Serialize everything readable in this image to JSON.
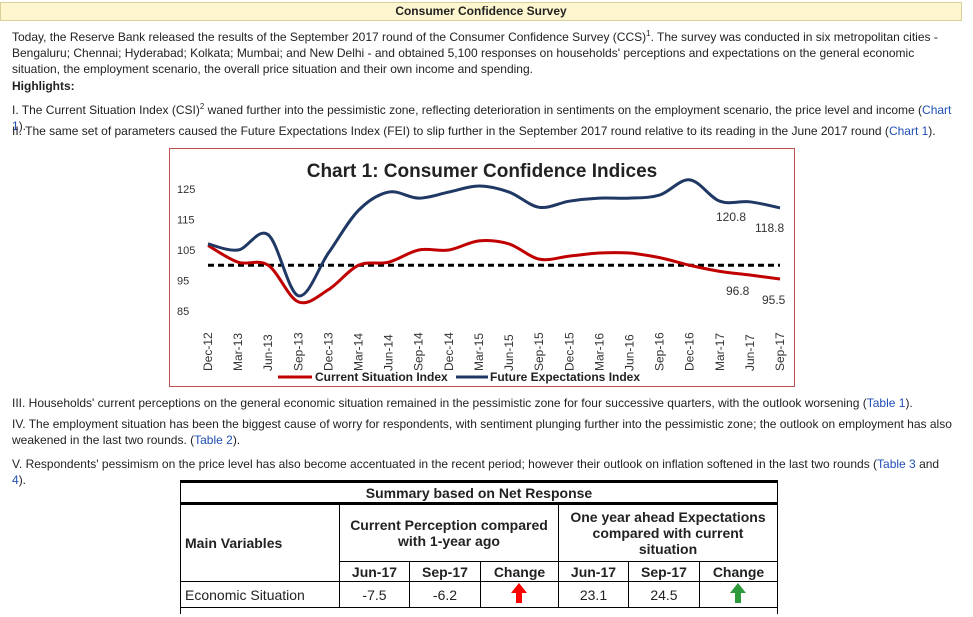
{
  "page": {
    "title": "Consumer Confidence Survey",
    "intro": "Today, the Reserve Bank released the results of the September 2017 round of the Consumer Confidence Survey (CCS)",
    "intro_sup": "1",
    "intro_rest": ". The survey was conducted in six metropolitan cities - Bengaluru; Chennai; Hyderabad; Kolkata; Mumbai; and New Delhi - and obtained 5,100 responses on households' perceptions and expectations on the general economic situation, the employment scenario, the overall price situation and their own income and spending.",
    "highlights_label": "Highlights:",
    "point1_a": "I. The Current Situation Index (CSI)",
    "point1_sup": "2",
    "point1_b": " waned further into the pessimistic zone, reflecting deterioration in sentiments on the employment scenario, the price level and income (",
    "point1_link": "Chart 1",
    "point1_c": ").",
    "point2_a": "II. The same set of parameters caused the Future Expectations Index (FEI) to slip further in the September 2017 round relative to its reading in the June 2017 round (",
    "point2_link": "Chart 1",
    "point2_c": ").",
    "point3_a": "III. Households' current perceptions on the general economic situation remained in the pessimistic zone for four successive quarters, with the outlook worsening (",
    "point3_link": "Table 1",
    "point3_c": ").",
    "point4_a": "IV. The employment situation has been the biggest cause of worry for respondents, with sentiment plunging further into the pessimistic zone; the outlook on employment has also weakened in the last two rounds. (",
    "point4_link": "Table 2",
    "point4_c": ").",
    "point5_a": "V. Respondents' pessimism on the price level has also become accentuated in the recent period; however their outlook on inflation softened in the last two rounds (",
    "point5_link": "Table 3",
    "point5_mid": " and ",
    "point5_link2": "4",
    "point5_c": ")."
  },
  "chart_data": {
    "type": "line",
    "title": "Chart 1: Consumer Confidence Indices",
    "categories": [
      "Dec-12",
      "Mar-13",
      "Jun-13",
      "Sep-13",
      "Dec-13",
      "Mar-14",
      "Jun-14",
      "Sep-14",
      "Dec-14",
      "Mar-15",
      "Jun-15",
      "Sep-15",
      "Dec-15",
      "Mar-16",
      "Jun-16",
      "Sep-16",
      "Dec-16",
      "Mar-17",
      "Jun-17",
      "Sep-17"
    ],
    "yticks": [
      "125",
      "115",
      "105",
      "95",
      "85"
    ],
    "ylim": [
      85,
      127
    ],
    "reference_line": 100,
    "series": [
      {
        "name": "Current Situation Index",
        "color": "#c00000",
        "values": [
          106.5,
          101,
          100,
          88,
          92,
          100,
          101,
          105,
          105,
          108,
          107,
          102,
          103,
          104,
          104,
          102.5,
          100,
          98,
          96.8,
          95.5
        ]
      },
      {
        "name": "Future Expectations Index",
        "color": "#1f3864",
        "values": [
          107,
          105,
          110,
          90,
          104,
          118,
          124,
          122,
          124,
          126,
          124,
          119,
          121,
          122,
          122,
          123,
          128,
          121,
          120.8,
          118.8
        ]
      }
    ],
    "data_labels": [
      "120.8",
      "118.8",
      "96.8",
      "95.5"
    ],
    "legend": "bottom"
  },
  "table": {
    "title": "Summary based on Net Response",
    "col_main": "Main Variables",
    "col_current": "Current Perception compared with 1-year ago",
    "col_expect": "One year ahead Expectations compared with current situation",
    "sub": [
      "Jun-17",
      "Sep-17",
      "Change",
      "Jun-17",
      "Sep-17",
      "Change"
    ],
    "rows": [
      {
        "label": "Economic Situation",
        "jun_cur": "-7.5",
        "sep_cur": "-6.2",
        "jun_exp": "23.1",
        "sep_exp": "24.5",
        "arrow_cur_color": "#ff0000",
        "arrow_exp_color": "#2e9a3c"
      }
    ]
  }
}
